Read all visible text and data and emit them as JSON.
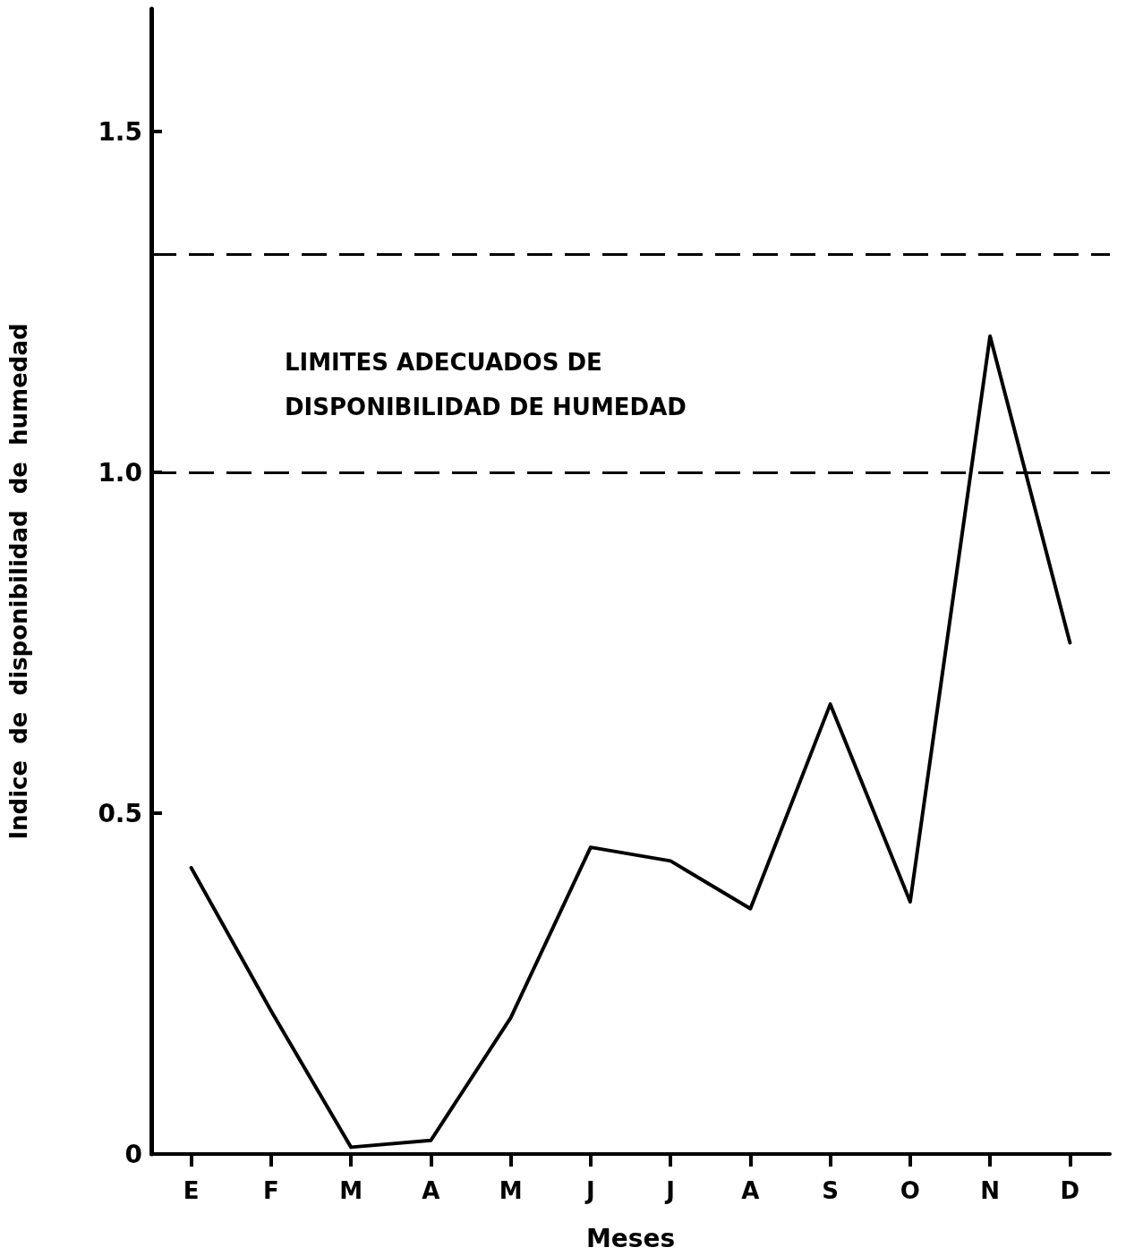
{
  "chart_data": {
    "type": "line",
    "xlabel": "Meses",
    "ylabel": "Indice  de  disponibilidad  de  humedad",
    "categories": [
      "E",
      "F",
      "M",
      "A",
      "M",
      "J",
      "J",
      "A",
      "S",
      "O",
      "N",
      "D"
    ],
    "series": [
      {
        "color": "#000000",
        "values": [
          0.42,
          0.21,
          0.01,
          0.02,
          0.2,
          0.45,
          0.43,
          0.36,
          0.66,
          0.37,
          1.2,
          0.75
        ]
      }
    ],
    "ylim": [
      0,
      1.68
    ],
    "yticks": [
      0,
      0.5,
      {
        "value": 1,
        "label": "1.0"
      },
      1.5
    ],
    "ref_lines": [
      {
        "axis": "y",
        "value": 1.0,
        "color": "#000000",
        "line_style": "dashed"
      },
      {
        "axis": "y",
        "value": 1.32,
        "color": "#000000",
        "line_style": "dashed"
      }
    ],
    "annotations": [
      "LIMITES ADECUADOS DE DISPONIBILIDAD DE HUMEDAD"
    ],
    "grid": false,
    "marker": "none",
    "line_style": "solid"
  }
}
